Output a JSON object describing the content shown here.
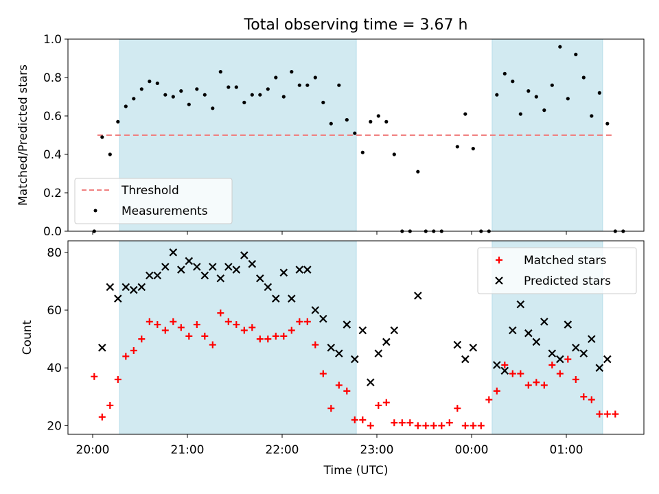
{
  "chart_data": [
    {
      "type": "scatter",
      "title": "Total observing time = 3.67 h",
      "ylabel": "Matched/Predicted stars",
      "ylim": [
        0.0,
        1.0
      ],
      "yticks": [
        "0.0",
        "0.2",
        "0.4",
        "0.6",
        "0.8",
        "1.0"
      ],
      "legend_position": "lower-left",
      "threshold": {
        "name": "Threshold",
        "value": 0.5,
        "x_start": "20:03",
        "x_end": "01:30",
        "color": "#f08080"
      },
      "measurements": {
        "name": "Measurements",
        "color": "#000000",
        "points": [
          [
            "20:01",
            0.0
          ],
          [
            "20:06",
            0.49
          ],
          [
            "20:11",
            0.4
          ],
          [
            "20:16",
            0.57
          ],
          [
            "20:21",
            0.65
          ],
          [
            "20:26",
            0.69
          ],
          [
            "20:31",
            0.74
          ],
          [
            "20:36",
            0.78
          ],
          [
            "20:41",
            0.77
          ],
          [
            "20:46",
            0.71
          ],
          [
            "20:51",
            0.7
          ],
          [
            "20:56",
            0.73
          ],
          [
            "21:01",
            0.66
          ],
          [
            "21:06",
            0.74
          ],
          [
            "21:11",
            0.71
          ],
          [
            "21:16",
            0.64
          ],
          [
            "21:21",
            0.83
          ],
          [
            "21:26",
            0.75
          ],
          [
            "21:31",
            0.75
          ],
          [
            "21:36",
            0.67
          ],
          [
            "21:41",
            0.71
          ],
          [
            "21:46",
            0.71
          ],
          [
            "21:51",
            0.74
          ],
          [
            "21:56",
            0.8
          ],
          [
            "22:01",
            0.7
          ],
          [
            "22:06",
            0.83
          ],
          [
            "22:11",
            0.76
          ],
          [
            "22:16",
            0.76
          ],
          [
            "22:21",
            0.8
          ],
          [
            "22:26",
            0.67
          ],
          [
            "22:31",
            0.56
          ],
          [
            "22:36",
            0.76
          ],
          [
            "22:41",
            0.58
          ],
          [
            "22:46",
            0.51
          ],
          [
            "22:51",
            0.41
          ],
          [
            "22:56",
            0.57
          ],
          [
            "23:01",
            0.6
          ],
          [
            "23:06",
            0.57
          ],
          [
            "23:11",
            0.4
          ],
          [
            "23:16",
            0.0
          ],
          [
            "23:21",
            0.0
          ],
          [
            "23:26",
            0.31
          ],
          [
            "23:31",
            0.0
          ],
          [
            "23:36",
            0.0
          ],
          [
            "23:41",
            0.0
          ],
          [
            "23:51",
            0.44
          ],
          [
            "23:56",
            0.61
          ],
          [
            "00:01",
            0.43
          ],
          [
            "00:06",
            0.0
          ],
          [
            "00:11",
            0.0
          ],
          [
            "00:16",
            0.71
          ],
          [
            "00:21",
            0.82
          ],
          [
            "00:26",
            0.78
          ],
          [
            "00:31",
            0.61
          ],
          [
            "00:36",
            0.73
          ],
          [
            "00:41",
            0.7
          ],
          [
            "00:46",
            0.63
          ],
          [
            "00:51",
            0.76
          ],
          [
            "00:56",
            0.96
          ],
          [
            "01:01",
            0.69
          ],
          [
            "01:06",
            0.92
          ],
          [
            "01:11",
            0.8
          ],
          [
            "01:16",
            0.6
          ],
          [
            "01:21",
            0.72
          ],
          [
            "01:26",
            0.56
          ],
          [
            "01:31",
            0.0
          ],
          [
            "01:36",
            0.0
          ]
        ]
      },
      "shaded_intervals": [
        [
          "20:17",
          "22:47"
        ],
        [
          "00:13",
          "01:23"
        ]
      ],
      "shade_color": "#add8e6"
    },
    {
      "type": "scatter",
      "xlabel": "Time (UTC)",
      "ylabel": "Count",
      "ylim": [
        17,
        84
      ],
      "yticks": [
        "20",
        "40",
        "60",
        "80"
      ],
      "xticks": [
        "20:00",
        "21:00",
        "22:00",
        "23:00",
        "00:00",
        "01:00"
      ],
      "legend_position": "upper-right",
      "shaded_intervals": [
        [
          "20:17",
          "22:47"
        ],
        [
          "00:13",
          "01:23"
        ]
      ],
      "shade_color": "#add8e6",
      "series": [
        {
          "name": "Matched stars",
          "marker": "plus",
          "color": "#ff0000",
          "points": [
            [
              "20:01",
              37
            ],
            [
              "20:06",
              23
            ],
            [
              "20:11",
              27
            ],
            [
              "20:16",
              36
            ],
            [
              "20:21",
              44
            ],
            [
              "20:26",
              46
            ],
            [
              "20:31",
              50
            ],
            [
              "20:36",
              56
            ],
            [
              "20:41",
              55
            ],
            [
              "20:46",
              53
            ],
            [
              "20:51",
              56
            ],
            [
              "20:56",
              54
            ],
            [
              "21:01",
              51
            ],
            [
              "21:06",
              55
            ],
            [
              "21:11",
              51
            ],
            [
              "21:16",
              48
            ],
            [
              "21:21",
              59
            ],
            [
              "21:26",
              56
            ],
            [
              "21:31",
              55
            ],
            [
              "21:36",
              53
            ],
            [
              "21:41",
              54
            ],
            [
              "21:46",
              50
            ],
            [
              "21:51",
              50
            ],
            [
              "21:56",
              51
            ],
            [
              "22:01",
              51
            ],
            [
              "22:06",
              53
            ],
            [
              "22:11",
              56
            ],
            [
              "22:16",
              56
            ],
            [
              "22:21",
              48
            ],
            [
              "22:26",
              38
            ],
            [
              "22:31",
              26
            ],
            [
              "22:36",
              34
            ],
            [
              "22:41",
              32
            ],
            [
              "22:46",
              22
            ],
            [
              "22:51",
              22
            ],
            [
              "22:56",
              20
            ],
            [
              "23:01",
              27
            ],
            [
              "23:06",
              28
            ],
            [
              "23:11",
              21
            ],
            [
              "23:16",
              21
            ],
            [
              "23:21",
              21
            ],
            [
              "23:26",
              20
            ],
            [
              "23:31",
              20
            ],
            [
              "23:36",
              20
            ],
            [
              "23:41",
              20
            ],
            [
              "23:46",
              21
            ],
            [
              "23:51",
              26
            ],
            [
              "23:56",
              20
            ],
            [
              "00:01",
              20
            ],
            [
              "00:06",
              20
            ],
            [
              "00:11",
              29
            ],
            [
              "00:16",
              32
            ],
            [
              "00:21",
              41
            ],
            [
              "00:26",
              38
            ],
            [
              "00:31",
              38
            ],
            [
              "00:36",
              34
            ],
            [
              "00:41",
              35
            ],
            [
              "00:46",
              34
            ],
            [
              "00:51",
              41
            ],
            [
              "00:56",
              38
            ],
            [
              "01:01",
              43
            ],
            [
              "01:06",
              36
            ],
            [
              "01:11",
              30
            ],
            [
              "01:16",
              29
            ],
            [
              "01:21",
              24
            ],
            [
              "01:26",
              24
            ],
            [
              "01:31",
              24
            ]
          ]
        },
        {
          "name": "Predicted stars",
          "marker": "x",
          "color": "#000000",
          "points": [
            [
              "20:06",
              47
            ],
            [
              "20:11",
              68
            ],
            [
              "20:16",
              64
            ],
            [
              "20:21",
              68
            ],
            [
              "20:26",
              67
            ],
            [
              "20:31",
              68
            ],
            [
              "20:36",
              72
            ],
            [
              "20:41",
              72
            ],
            [
              "20:46",
              75
            ],
            [
              "20:51",
              80
            ],
            [
              "20:56",
              74
            ],
            [
              "21:01",
              77
            ],
            [
              "21:06",
              75
            ],
            [
              "21:11",
              72
            ],
            [
              "21:16",
              75
            ],
            [
              "21:21",
              71
            ],
            [
              "21:26",
              75
            ],
            [
              "21:31",
              74
            ],
            [
              "21:36",
              79
            ],
            [
              "21:41",
              76
            ],
            [
              "21:46",
              71
            ],
            [
              "21:51",
              68
            ],
            [
              "21:56",
              64
            ],
            [
              "22:01",
              73
            ],
            [
              "22:06",
              64
            ],
            [
              "22:11",
              74
            ],
            [
              "22:16",
              74
            ],
            [
              "22:21",
              60
            ],
            [
              "22:26",
              57
            ],
            [
              "22:31",
              47
            ],
            [
              "22:36",
              45
            ],
            [
              "22:41",
              55
            ],
            [
              "22:46",
              43
            ],
            [
              "22:51",
              53
            ],
            [
              "22:56",
              35
            ],
            [
              "23:01",
              45
            ],
            [
              "23:06",
              49
            ],
            [
              "23:11",
              53
            ],
            [
              "23:26",
              65
            ],
            [
              "23:51",
              48
            ],
            [
              "23:56",
              43
            ],
            [
              "00:01",
              47
            ],
            [
              "00:16",
              41
            ],
            [
              "00:21",
              39
            ],
            [
              "00:26",
              53
            ],
            [
              "00:31",
              62
            ],
            [
              "00:36",
              52
            ],
            [
              "00:41",
              49
            ],
            [
              "00:46",
              56
            ],
            [
              "00:51",
              45
            ],
            [
              "00:56",
              43
            ],
            [
              "01:01",
              55
            ],
            [
              "01:06",
              47
            ],
            [
              "01:11",
              45
            ],
            [
              "01:16",
              50
            ],
            [
              "01:21",
              40
            ],
            [
              "01:26",
              43
            ]
          ]
        }
      ]
    }
  ]
}
